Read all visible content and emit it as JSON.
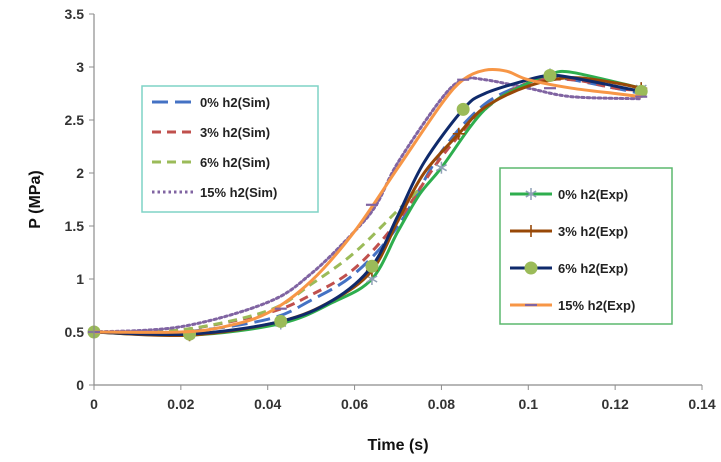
{
  "chart_data": {
    "type": "line",
    "title": "",
    "xlabel": "Time (s)",
    "ylabel": "P (MPa)",
    "xlim": [
      0,
      0.14
    ],
    "ylim": [
      0,
      3.5
    ],
    "xticks": [
      0,
      0.02,
      0.04,
      0.06,
      0.08,
      0.1,
      0.12,
      0.14
    ],
    "xtick_labels": [
      "0",
      "0.02",
      "0.04",
      "0.06",
      "0.08",
      "0.1",
      "0.12",
      "0.14"
    ],
    "yticks": [
      0,
      0.5,
      1,
      1.5,
      2,
      2.5,
      3,
      3.5
    ],
    "ytick_labels": [
      "0",
      "0.5",
      "1",
      "1.5",
      "2",
      "2.5",
      "3",
      "3.5"
    ],
    "grid": false,
    "legends": [
      {
        "placement": "upper-left",
        "entries": [
          "0% h2(Sim)",
          "3% h2(Sim)",
          "6% h2(Sim)",
          "15% h2(Sim)"
        ]
      },
      {
        "placement": "right",
        "entries": [
          "0% h2(Exp)",
          "3% h2(Exp)",
          "6% h2(Exp)",
          "15% h2(Exp)"
        ]
      }
    ],
    "series": [
      {
        "name": "0% h2(Sim)",
        "color": "#4472C4",
        "dash": "long-dash",
        "marker": "none",
        "points": [
          [
            0,
            0.5
          ],
          [
            0.02,
            0.5
          ],
          [
            0.04,
            0.62
          ],
          [
            0.05,
            0.8
          ],
          [
            0.06,
            1.05
          ],
          [
            0.07,
            1.5
          ],
          [
            0.08,
            2.2
          ],
          [
            0.09,
            2.65
          ],
          [
            0.1,
            2.85
          ],
          [
            0.105,
            2.9
          ],
          [
            0.11,
            2.88
          ],
          [
            0.12,
            2.8
          ],
          [
            0.126,
            2.75
          ]
        ]
      },
      {
        "name": "3% h2(Sim)",
        "color": "#C0504D",
        "dash": "dash",
        "marker": "none",
        "points": [
          [
            0,
            0.5
          ],
          [
            0.02,
            0.52
          ],
          [
            0.04,
            0.68
          ],
          [
            0.05,
            0.85
          ],
          [
            0.06,
            1.1
          ],
          [
            0.07,
            1.55
          ],
          [
            0.08,
            2.15
          ],
          [
            0.09,
            2.6
          ],
          [
            0.1,
            2.85
          ],
          [
            0.11,
            2.88
          ],
          [
            0.12,
            2.8
          ],
          [
            0.126,
            2.78
          ]
        ]
      },
      {
        "name": "6% h2(Sim)",
        "color": "#9BBB59",
        "dash": "dash",
        "marker": "none",
        "points": [
          [
            0,
            0.5
          ],
          [
            0.02,
            0.52
          ],
          [
            0.04,
            0.7
          ],
          [
            0.05,
            0.95
          ],
          [
            0.06,
            1.25
          ],
          [
            0.07,
            1.65
          ],
          [
            0.075,
            1.85
          ]
        ]
      },
      {
        "name": "15% h2(Sim)",
        "color": "#8064A2",
        "dash": "dot",
        "marker": "none",
        "points": [
          [
            0,
            0.5
          ],
          [
            0.02,
            0.55
          ],
          [
            0.04,
            0.78
          ],
          [
            0.05,
            1.05
          ],
          [
            0.06,
            1.45
          ],
          [
            0.065,
            1.7
          ],
          [
            0.07,
            2.1
          ],
          [
            0.08,
            2.7
          ],
          [
            0.085,
            2.88
          ],
          [
            0.09,
            2.88
          ],
          [
            0.1,
            2.8
          ],
          [
            0.11,
            2.72
          ],
          [
            0.126,
            2.7
          ]
        ]
      },
      {
        "name": "0% h2(Exp)",
        "color": "#2EAE4E",
        "dash": "solid",
        "marker": "asterisk",
        "points": [
          [
            0,
            0.5
          ],
          [
            0.022,
            0.47
          ],
          [
            0.043,
            0.58
          ],
          [
            0.055,
            0.78
          ],
          [
            0.064,
            1.0
          ],
          [
            0.07,
            1.45
          ],
          [
            0.075,
            1.8
          ],
          [
            0.08,
            2.05
          ],
          [
            0.09,
            2.6
          ],
          [
            0.1,
            2.85
          ],
          [
            0.105,
            2.93
          ],
          [
            0.11,
            2.95
          ],
          [
            0.126,
            2.8
          ]
        ],
        "marked_points": [
          [
            0,
            0.5
          ],
          [
            0.022,
            0.47
          ],
          [
            0.043,
            0.58
          ],
          [
            0.064,
            1.0
          ],
          [
            0.08,
            2.05
          ],
          [
            0.105,
            2.93
          ],
          [
            0.126,
            2.8
          ]
        ]
      },
      {
        "name": "3% h2(Exp)",
        "color": "#984807",
        "dash": "solid",
        "marker": "plus",
        "points": [
          [
            0,
            0.5
          ],
          [
            0.022,
            0.47
          ],
          [
            0.043,
            0.6
          ],
          [
            0.055,
            0.8
          ],
          [
            0.064,
            1.08
          ],
          [
            0.07,
            1.55
          ],
          [
            0.076,
            2.0
          ],
          [
            0.084,
            2.37
          ],
          [
            0.09,
            2.62
          ],
          [
            0.1,
            2.82
          ],
          [
            0.11,
            2.9
          ],
          [
            0.12,
            2.85
          ],
          [
            0.126,
            2.8
          ]
        ],
        "marked_points": [
          [
            0,
            0.5
          ],
          [
            0.022,
            0.47
          ],
          [
            0.043,
            0.6
          ],
          [
            0.064,
            1.08
          ],
          [
            0.084,
            2.37
          ],
          [
            0.126,
            2.8
          ]
        ]
      },
      {
        "name": "6% h2(Exp)",
        "color": "#0F2A6B",
        "dash": "solid",
        "marker": "circle",
        "points": [
          [
            0,
            0.5
          ],
          [
            0.022,
            0.48
          ],
          [
            0.043,
            0.6
          ],
          [
            0.055,
            0.8
          ],
          [
            0.064,
            1.12
          ],
          [
            0.07,
            1.6
          ],
          [
            0.076,
            2.1
          ],
          [
            0.085,
            2.6
          ],
          [
            0.09,
            2.75
          ],
          [
            0.1,
            2.88
          ],
          [
            0.105,
            2.92
          ],
          [
            0.11,
            2.9
          ],
          [
            0.12,
            2.82
          ],
          [
            0.126,
            2.77
          ]
        ],
        "marked_points": [
          [
            0,
            0.5
          ],
          [
            0.022,
            0.48
          ],
          [
            0.043,
            0.6
          ],
          [
            0.064,
            1.12
          ],
          [
            0.085,
            2.6
          ],
          [
            0.105,
            2.92
          ],
          [
            0.126,
            2.77
          ]
        ]
      },
      {
        "name": "15% h2(Exp)",
        "color": "#F79646",
        "dash": "solid",
        "marker": "dash",
        "points": [
          [
            0,
            0.5
          ],
          [
            0.02,
            0.5
          ],
          [
            0.03,
            0.55
          ],
          [
            0.04,
            0.68
          ],
          [
            0.05,
            0.98
          ],
          [
            0.06,
            1.45
          ],
          [
            0.07,
            2.05
          ],
          [
            0.08,
            2.65
          ],
          [
            0.085,
            2.88
          ],
          [
            0.09,
            2.97
          ],
          [
            0.095,
            2.96
          ],
          [
            0.1,
            2.88
          ],
          [
            0.11,
            2.8
          ],
          [
            0.12,
            2.75
          ],
          [
            0.126,
            2.72
          ]
        ],
        "marked_points": [
          [
            0,
            0.5
          ],
          [
            0.043,
            0.72
          ],
          [
            0.064,
            1.7
          ],
          [
            0.085,
            2.88
          ],
          [
            0.105,
            2.8
          ],
          [
            0.126,
            2.72
          ]
        ]
      }
    ]
  }
}
